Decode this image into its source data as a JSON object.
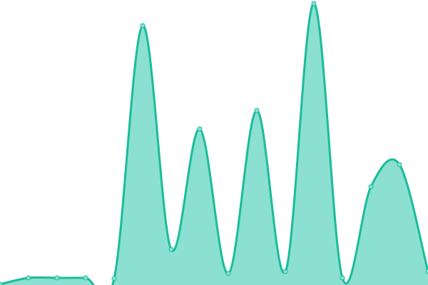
{
  "chart_data": {
    "type": "area",
    "x": [
      0,
      1,
      2,
      3,
      4,
      5,
      6,
      7,
      8,
      9,
      10,
      11,
      12,
      13,
      14,
      15
    ],
    "series": [
      {
        "values": [
          1,
          10,
          10,
          10,
          9,
          364,
          50,
          219,
          16,
          245,
          19,
          395,
          10,
          138,
          169,
          19
        ]
      }
    ],
    "ylim": [
      0,
      400
    ],
    "grid": false,
    "axes": false,
    "legend": "none",
    "curve": "smooth",
    "colors": {
      "line": "#1abc9c",
      "fill": "#8be0d1",
      "point_fill": "#8be0d1"
    }
  }
}
